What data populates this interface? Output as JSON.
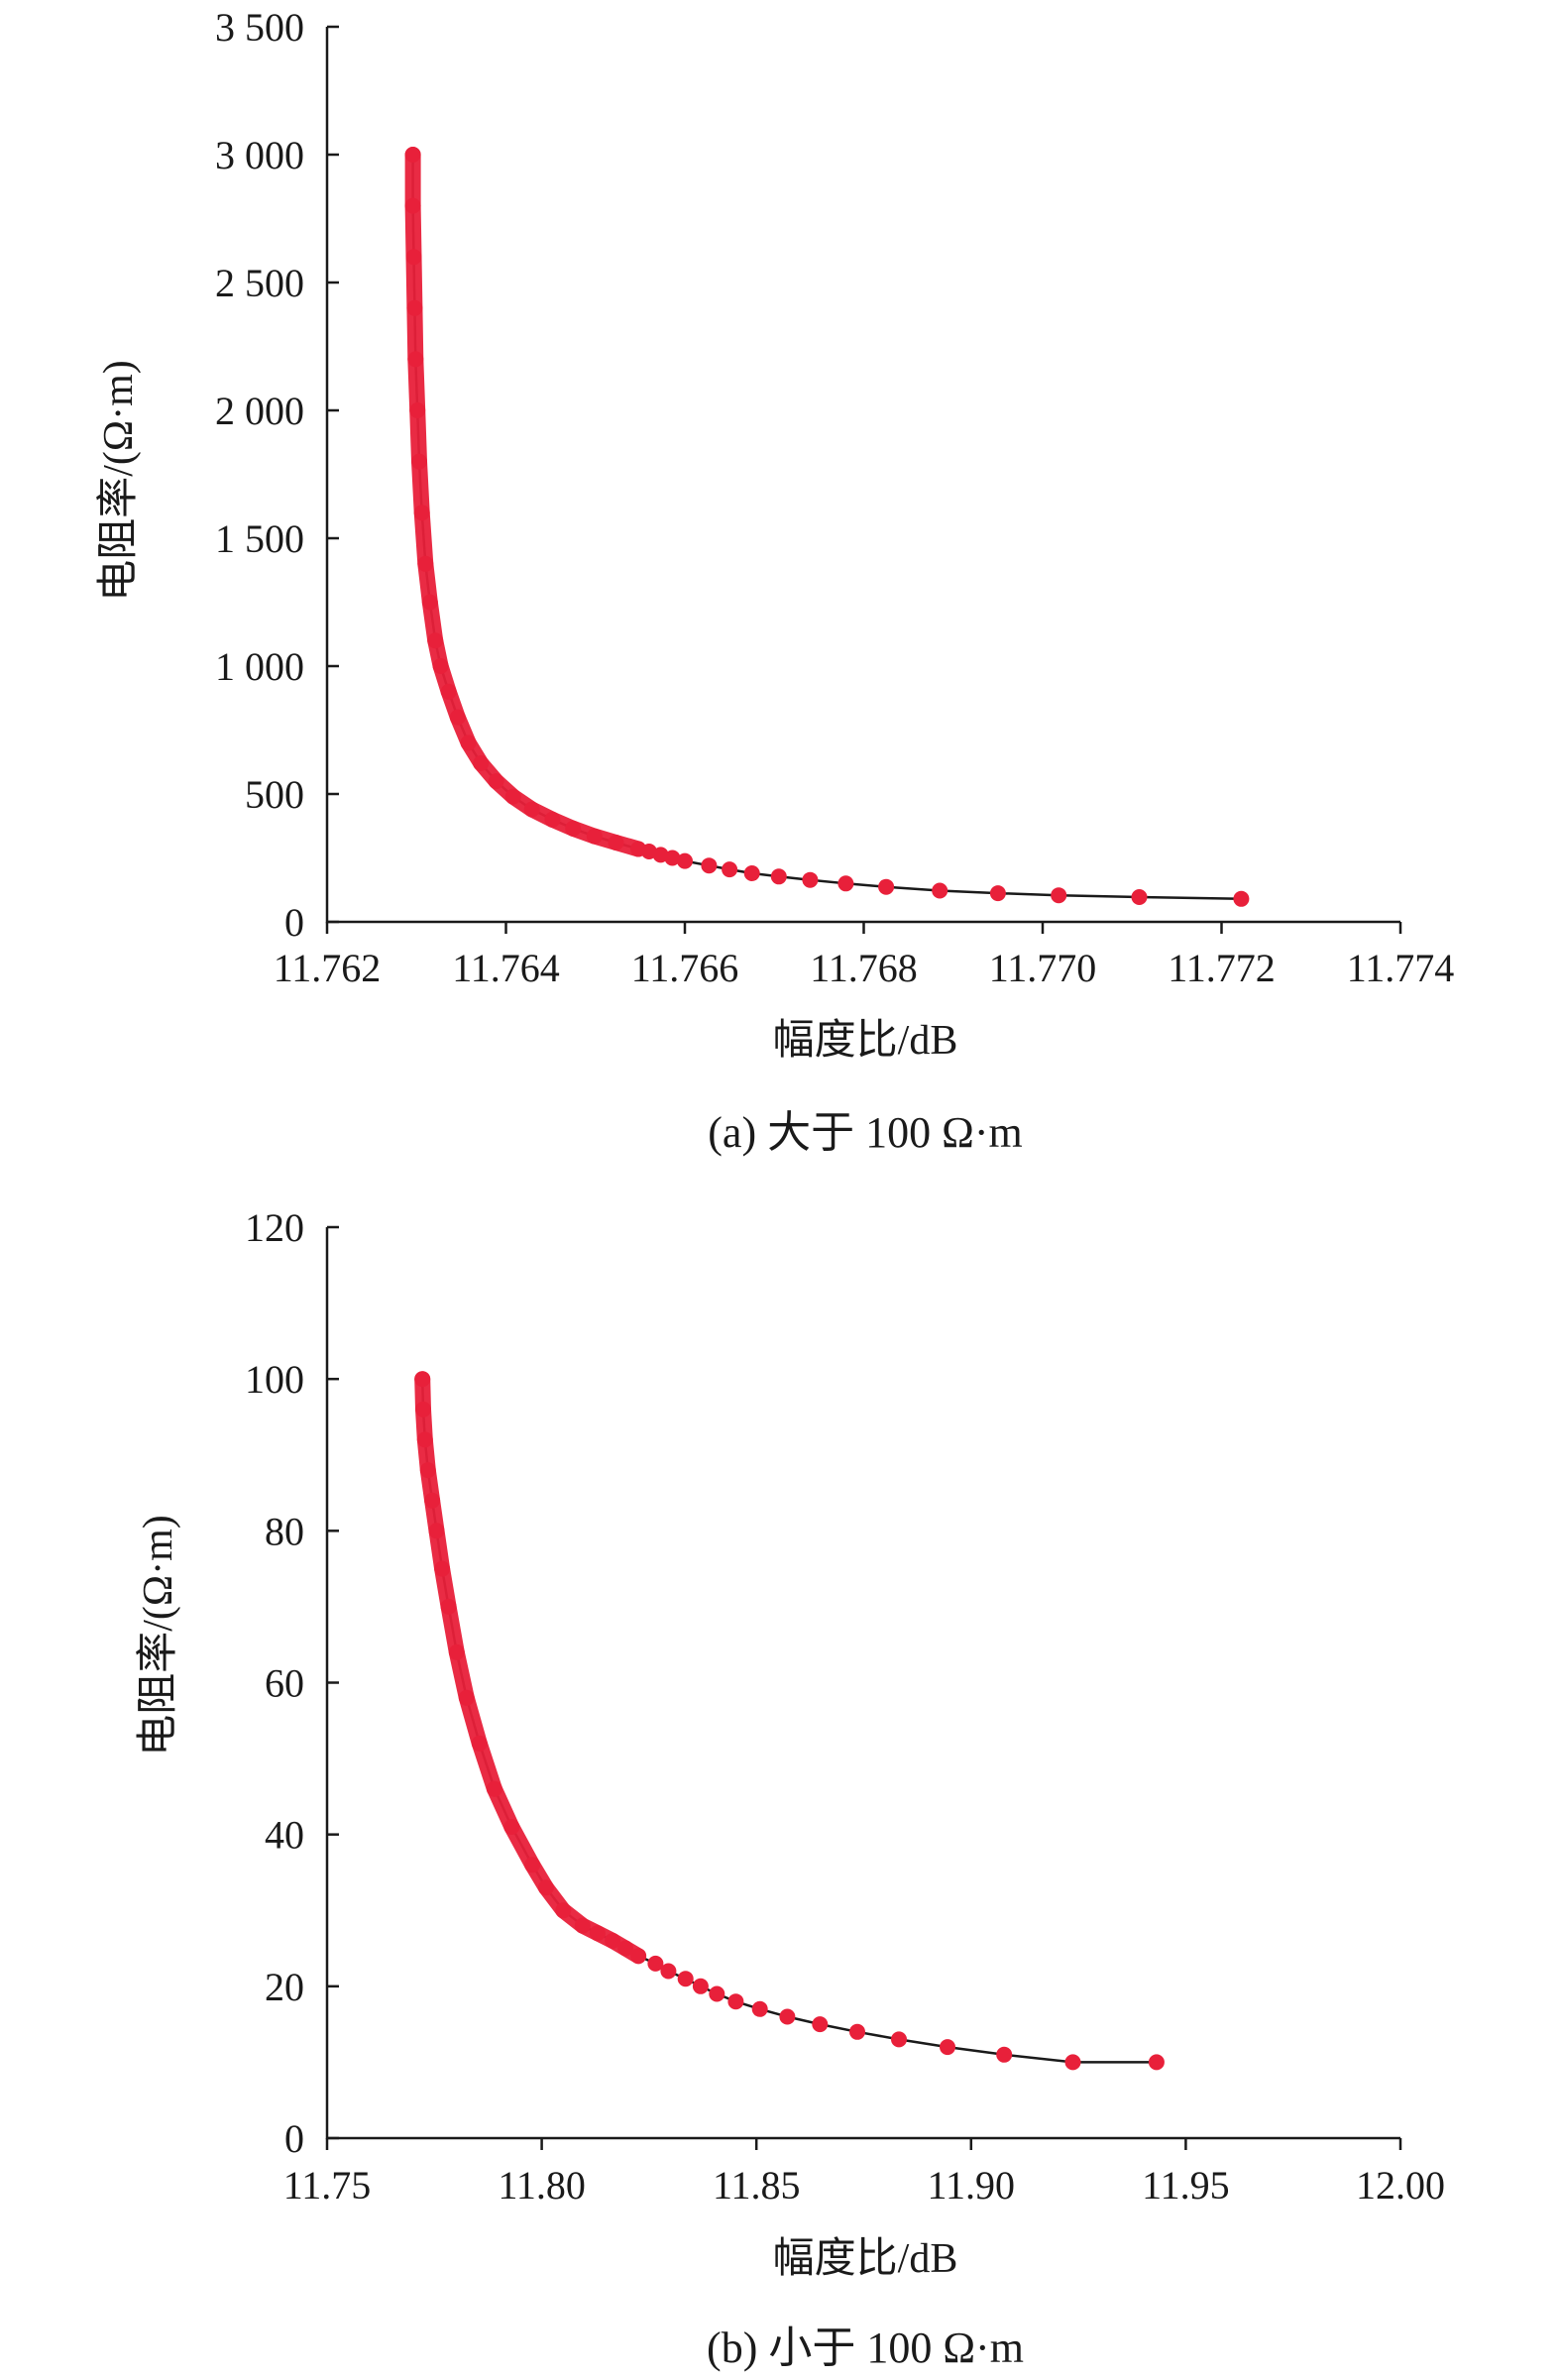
{
  "colors": {
    "marker": "#e8203a",
    "line": "#1a1a1a",
    "axis": "#1a1a1a"
  },
  "chart_data": [
    {
      "id": "a",
      "type": "scatter",
      "caption": "(a) 大于 100 Ω·m",
      "xlabel": "幅度比/dB",
      "ylabel": "电阻率/(Ω·m)",
      "xlim": [
        11.762,
        11.774
      ],
      "ylim": [
        0,
        3500
      ],
      "xticks": [
        11.762,
        11.764,
        11.766,
        11.768,
        11.77,
        11.772,
        11.774
      ],
      "xtick_labels": [
        "11.762",
        "11.764",
        "11.766",
        "11.768",
        "11.770",
        "11.772",
        "11.774"
      ],
      "yticks": [
        0,
        500,
        1000,
        1500,
        2000,
        2500,
        3000,
        3500
      ],
      "ytick_labels": [
        "0",
        "500",
        "1 000",
        "1 500",
        "2 000",
        "2 500",
        "3 000",
        "3 500"
      ],
      "grid": false,
      "series": [
        {
          "line": true,
          "x": [
            11.76296,
            11.76296,
            11.76297,
            11.76298,
            11.76299,
            11.76301,
            11.76303,
            11.76306,
            11.7631,
            11.76315,
            11.76321,
            11.76327,
            11.76336,
            11.76346,
            11.76358,
            11.76372,
            11.76389,
            11.76408,
            11.76429,
            11.76452,
            11.76475,
            11.76499,
            11.76523,
            11.76548,
            11.7656,
            11.76573,
            11.76586,
            11.766,
            11.76627,
            11.7665,
            11.76675,
            11.76705,
            11.7674,
            11.7678,
            11.76825,
            11.76885,
            11.7695,
            11.77018,
            11.77108,
            11.77222
          ],
          "y": [
            3000,
            2800,
            2600,
            2400,
            2200,
            2000,
            1800,
            1600,
            1400,
            1250,
            1100,
            1000,
            900,
            800,
            700,
            620,
            550,
            490,
            440,
            400,
            365,
            335,
            310,
            285,
            275,
            262,
            250,
            238,
            220,
            205,
            190,
            177,
            164,
            150,
            137,
            122,
            112,
            104,
            97,
            90
          ]
        }
      ]
    },
    {
      "id": "b",
      "type": "scatter",
      "caption": "(b) 小于 100 Ω·m",
      "xlabel": "幅度比/dB",
      "ylabel": "电阻率/(Ω·m)",
      "xlim": [
        11.75,
        12.0
      ],
      "ylim": [
        0,
        120
      ],
      "xticks": [
        11.75,
        11.8,
        11.85,
        11.9,
        11.95,
        12.0
      ],
      "xtick_labels": [
        "11.75",
        "11.80",
        "11.85",
        "11.90",
        "11.95",
        "12.00"
      ],
      "yticks": [
        0,
        20,
        40,
        60,
        80,
        100,
        120
      ],
      "ytick_labels": [
        "0",
        "20",
        "40",
        "60",
        "80",
        "100",
        "120"
      ],
      "grid": false,
      "series": [
        {
          "line": true,
          "x": [
            11.7722,
            11.7724,
            11.7728,
            11.7735,
            11.7745,
            11.7755,
            11.7768,
            11.7783,
            11.7802,
            11.7825,
            11.7855,
            11.789,
            11.793,
            11.7978,
            11.801,
            11.805,
            11.8095,
            11.813,
            11.8165,
            11.8195,
            11.8225,
            11.8265,
            11.8295,
            11.8335,
            11.837,
            11.8408,
            11.8452,
            11.8508,
            11.8572,
            11.8648,
            11.8735,
            11.8832,
            11.8945,
            11.9077,
            11.9237,
            11.9432
          ],
          "y": [
            100,
            96,
            92,
            88,
            84,
            80,
            75,
            70,
            64,
            58,
            52,
            46,
            41,
            36,
            33,
            30,
            28,
            27,
            26,
            25,
            24,
            23,
            22,
            21,
            20,
            19,
            18,
            17,
            16,
            15,
            14,
            13,
            12,
            11,
            10,
            10
          ]
        }
      ]
    }
  ]
}
